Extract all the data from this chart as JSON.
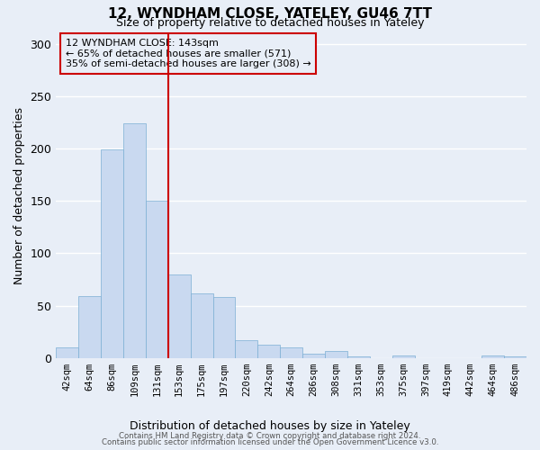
{
  "title1": "12, WYNDHAM CLOSE, YATELEY, GU46 7TT",
  "title2": "Size of property relative to detached houses in Yateley",
  "xlabel": "Distribution of detached houses by size in Yateley",
  "ylabel": "Number of detached properties",
  "bin_labels": [
    "42sqm",
    "64sqm",
    "86sqm",
    "109sqm",
    "131sqm",
    "153sqm",
    "175sqm",
    "197sqm",
    "220sqm",
    "242sqm",
    "264sqm",
    "286sqm",
    "308sqm",
    "331sqm",
    "353sqm",
    "375sqm",
    "397sqm",
    "419sqm",
    "442sqm",
    "464sqm",
    "486sqm"
  ],
  "bar_values": [
    10,
    59,
    199,
    224,
    150,
    80,
    62,
    58,
    17,
    13,
    10,
    4,
    7,
    1,
    0,
    2,
    0,
    0,
    0,
    2,
    1
  ],
  "bar_color": "#c9d9f0",
  "bar_edge_color": "#7bafd4",
  "vline_x": 4.5,
  "vline_color": "#cc0000",
  "ylim": [
    0,
    310
  ],
  "yticks": [
    0,
    50,
    100,
    150,
    200,
    250,
    300
  ],
  "annotation_title": "12 WYNDHAM CLOSE: 143sqm",
  "annotation_line1": "← 65% of detached houses are smaller (571)",
  "annotation_line2": "35% of semi-detached houses are larger (308) →",
  "annotation_box_color": "#cc0000",
  "footer1": "Contains HM Land Registry data © Crown copyright and database right 2024.",
  "footer2": "Contains public sector information licensed under the Open Government Licence v3.0.",
  "background_color": "#e8eef7",
  "grid_color": "#ffffff"
}
